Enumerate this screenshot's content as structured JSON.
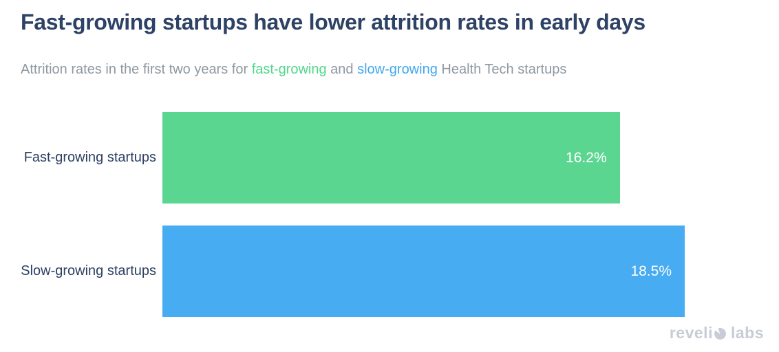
{
  "header": {
    "title": "Fast-growing startups have lower attrition rates in early days",
    "subtitle": {
      "prefix": "Attrition rates in the first two years for ",
      "fast_word": "fast-growing",
      "middle": " and ",
      "slow_word": "slow-growing",
      "suffix": " Health Tech startups"
    }
  },
  "chart_data": {
    "type": "bar",
    "orientation": "horizontal",
    "title": "Fast-growing startups have lower attrition rates in early days",
    "subtitle": "Attrition rates in the first two years for fast-growing and slow-growing Health Tech startups",
    "categories": [
      "Fast-growing startups",
      "Slow-growing startups"
    ],
    "values": [
      16.2,
      18.5
    ],
    "value_labels": [
      "16.2%",
      "18.5%"
    ],
    "unit": "%",
    "bar_colors": [
      "#5bd690",
      "#47acf1"
    ],
    "xmax": 18.5,
    "xlabel": "",
    "ylabel": "",
    "grid": false,
    "legend": "none",
    "value_label_position": "inside-end"
  },
  "colors": {
    "title_navy": "#2e4266",
    "subtitle_gray": "#8f98a1",
    "fast_green_word": "#4fd78c",
    "slow_blue_word": "#41a7f0",
    "bar_green": "#5bd690",
    "bar_blue": "#47acf1",
    "category_label_navy": "#2c3f62",
    "value_label_white": "#ffffff",
    "logo_gray": "#c8ccd5",
    "background": "#ffffff"
  },
  "footer": {
    "logo_text_left": "reveli",
    "logo_icon": "revelio-logo-o-icon",
    "logo_text_right": "labs"
  }
}
